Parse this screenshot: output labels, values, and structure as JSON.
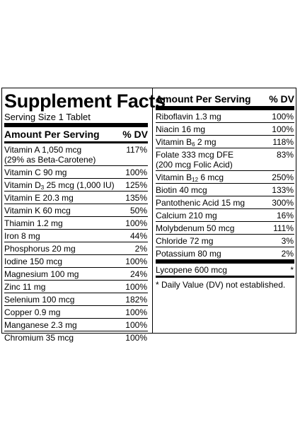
{
  "left": {
    "title": "Supplement Facts",
    "serving": "Serving Size 1 Tablet",
    "header": {
      "amount": "Amount Per Serving",
      "dv": "% DV"
    },
    "rows": [
      {
        "name": "Vitamin A 1,050 mcg\n(29% as Beta-Carotene)",
        "dv": "117%"
      },
      {
        "name": "Vitamin C 90 mg",
        "dv": "100%"
      },
      {
        "name_pre": "Vitamin D",
        "name_sub": "3",
        "name_post": " 25 mcg (1,000 IU)",
        "dv": "125%"
      },
      {
        "name": "Vitamin E 20.3 mg",
        "dv": "135%"
      },
      {
        "name": "Vitamin K 60 mcg",
        "dv": "50%"
      },
      {
        "name": "Thiamin 1.2 mg",
        "dv": "100%"
      },
      {
        "name": "Iron 8 mg",
        "dv": "44%"
      },
      {
        "name": "Phosphorus 20 mg",
        "dv": "2%"
      },
      {
        "name": "Iodine 150 mcg",
        "dv": "100%"
      },
      {
        "name": "Magnesium 100 mg",
        "dv": "24%"
      },
      {
        "name": "Zinc 11 mg",
        "dv": "100%"
      },
      {
        "name": "Selenium 100 mcg",
        "dv": "182%"
      },
      {
        "name": "Copper 0.9 mg",
        "dv": "100%"
      },
      {
        "name": "Manganese 2.3 mg",
        "dv": "100%"
      },
      {
        "name": "Chromium 35 mcg",
        "dv": "100%"
      }
    ]
  },
  "right": {
    "header": {
      "amount": "Amount Per Serving",
      "dv": "% DV"
    },
    "rows": [
      {
        "name": "Riboflavin 1.3 mg",
        "dv": "100%"
      },
      {
        "name": "Niacin 16 mg",
        "dv": "100%"
      },
      {
        "name_pre": "Vitamin B",
        "name_sub": "6",
        "name_post": " 2 mg",
        "dv": "118%"
      },
      {
        "name": "Folate 333 mcg DFE\n       (200 mcg Folic Acid)",
        "dv": "83%"
      },
      {
        "name_pre": "Vitamin B",
        "name_sub": "12",
        "name_post": " 6 mcg",
        "dv": "250%"
      },
      {
        "name": "Biotin 40 mcg",
        "dv": "133%"
      },
      {
        "name": "Pantothenic Acid 15 mg",
        "dv": "300%"
      },
      {
        "name": "Calcium 210 mg",
        "dv": "16%"
      },
      {
        "name": "Molybdenum 50 mcg",
        "dv": "111%"
      },
      {
        "name": "Chloride 72 mg",
        "dv": "3%"
      },
      {
        "name": "Potassium 80 mg",
        "dv": "2%"
      }
    ],
    "extra": {
      "name": "Lycopene 600 mcg",
      "dv": "*"
    },
    "note": "* Daily Value (DV) not established."
  }
}
